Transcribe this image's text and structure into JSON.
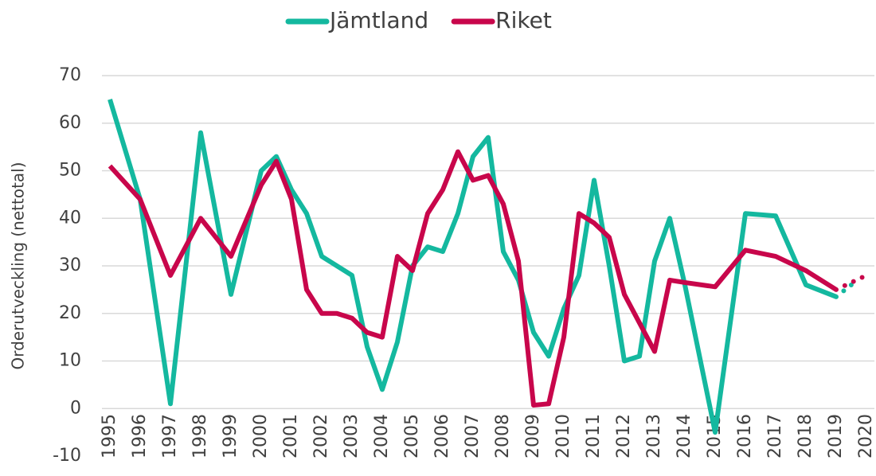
{
  "chart_data": {
    "type": "line",
    "y_label": "Orderutveckling (nettotal)",
    "xlim": [
      1995,
      2020
    ],
    "xticks": [
      1995,
      1996,
      1997,
      1998,
      1999,
      2000,
      2001,
      2002,
      2003,
      2004,
      2005,
      2006,
      2007,
      2008,
      2009,
      2010,
      2011,
      2012,
      2013,
      2014,
      2015,
      2016,
      2017,
      2018,
      2019,
      2020
    ],
    "ylim": [
      -10,
      70
    ],
    "yticks": [
      -10,
      0,
      10,
      20,
      30,
      40,
      50,
      60,
      70
    ],
    "grid": true,
    "legend": "top",
    "dotted_from_x": 2019,
    "series": [
      {
        "name": "Jämtland",
        "color": "#14b89f",
        "x": [
          1995,
          1996,
          1997,
          1998,
          1999,
          2000,
          2000.5,
          2001,
          2001.5,
          2002,
          2003,
          2003.5,
          2004,
          2004.5,
          2005,
          2005.5,
          2006,
          2006.5,
          2007,
          2007.5,
          2008,
          2008.5,
          2009,
          2009.5,
          2010,
          2010.5,
          2011,
          2011.5,
          2012,
          2012.5,
          2013,
          2013.5,
          2014,
          2015,
          2016,
          2017,
          2018,
          2019,
          2019.5
        ],
        "values": [
          65,
          44,
          1,
          58,
          24,
          50,
          53,
          46,
          41,
          32,
          28,
          13,
          4,
          14,
          30,
          34,
          33,
          41,
          53,
          57,
          33,
          27,
          16,
          11,
          21,
          28,
          48,
          30,
          10,
          11,
          31,
          40,
          26,
          -5,
          41,
          40.5,
          26,
          23.5,
          26
        ]
      },
      {
        "name": "Riket",
        "color": "#c8064b",
        "x": [
          1995,
          1996,
          1997,
          1998,
          1999,
          2000,
          2000.5,
          2001,
          2001.5,
          2002,
          2002.5,
          2003,
          2003.5,
          2004,
          2004.5,
          2005,
          2005.5,
          2006,
          2006.5,
          2007,
          2007.5,
          2008,
          2008.5,
          2009,
          2009.5,
          2010,
          2010.5,
          2011,
          2011.5,
          2012,
          2012.5,
          2013,
          2013.5,
          2014,
          2015,
          2016,
          2017,
          2018,
          2019,
          2019.5,
          2020
        ],
        "values": [
          51,
          44,
          28,
          40,
          32,
          47,
          52,
          44,
          25,
          20,
          20,
          19,
          16,
          15,
          32,
          29,
          41,
          46,
          54,
          48,
          49,
          43,
          31,
          0.7,
          1,
          15,
          41,
          39,
          36,
          24,
          18,
          12,
          27,
          26.5,
          25.6,
          33.3,
          32,
          29,
          25,
          26.5,
          28
        ]
      }
    ]
  }
}
